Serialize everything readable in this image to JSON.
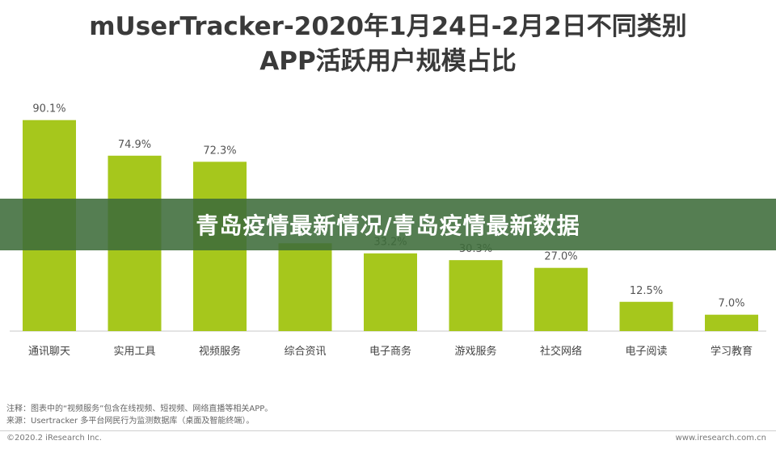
{
  "chart_data": {
    "type": "bar",
    "title_line1": "mUserTracker-2020年1月24日-2月2日不同类别",
    "title_line2": "APP活跃用户规模占比",
    "categories": [
      "通讯聊天",
      "实用工具",
      "视频服务",
      "综合资讯",
      "电子商务",
      "游戏服务",
      "社交网络",
      "电子阅读",
      "学习教育"
    ],
    "values": [
      90.1,
      74.9,
      72.3,
      37.5,
      33.2,
      30.3,
      27.0,
      12.5,
      7.0
    ],
    "value_labels": [
      "90.1%",
      "74.9%",
      "72.3%",
      "",
      "33.2%",
      "30.3%",
      "27.0%",
      "12.5%",
      "7.0%"
    ],
    "ylim": [
      0,
      100
    ],
    "bar_color": "#a6c71c"
  },
  "notes": {
    "line1": "注释：图表中的“视频服务”包含在线视频、短视频、网络直播等相关APP。",
    "line2": "来源：Usertracker 多平台网民行为监测数据库（桌面及智能终端）。"
  },
  "footer": {
    "copyright": "©2020.2 iResearch Inc.",
    "website": "www.iresearch.com.cn"
  },
  "banner": {
    "text": "青岛疫情最新情况/青岛疫情最新数据",
    "color": "#3e6c3a"
  }
}
